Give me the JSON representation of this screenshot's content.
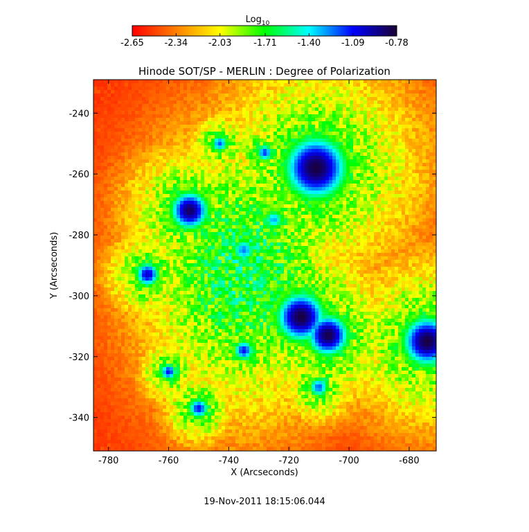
{
  "chart_data": {
    "type": "heatmap",
    "title": "Hinode SOT/SP - MERLIN : Degree of Polarization",
    "xlabel": "X (Arcseconds)",
    "ylabel": "Y (Arcseconds)",
    "xlim": [
      -785,
      -671
    ],
    "ylim": [
      -351,
      -229
    ],
    "x_ticks": [
      -780,
      -760,
      -740,
      -720,
      -700,
      -680
    ],
    "y_ticks": [
      -240,
      -260,
      -280,
      -300,
      -320,
      -340
    ],
    "colorbar": {
      "label_base": "Log",
      "label_sub": "10",
      "range": [
        -2.65,
        -0.78
      ],
      "ticks": [
        "-2.65",
        "-2.34",
        "-2.03",
        "-1.71",
        "-1.40",
        "-1.09",
        "-0.78"
      ],
      "colormap": [
        "#ff0000",
        "#ff8000",
        "#ffff00",
        "#00ff00",
        "#00ffff",
        "#0000ff",
        "#1a0033"
      ]
    },
    "features": [
      {
        "x": -711,
        "y": -258,
        "r": 9,
        "peak": -0.8
      },
      {
        "x": -753,
        "y": -272,
        "r": 5.5,
        "peak": -0.85
      },
      {
        "x": -716,
        "y": -307,
        "r": 7,
        "peak": -0.8
      },
      {
        "x": -707,
        "y": -313,
        "r": 6,
        "peak": -0.82
      },
      {
        "x": -674,
        "y": -315,
        "r": 7,
        "peak": -0.8
      },
      {
        "x": -767,
        "y": -293,
        "r": 3.5,
        "peak": -1.0
      },
      {
        "x": -750,
        "y": -337,
        "r": 3,
        "peak": -1.1
      },
      {
        "x": -760,
        "y": -325,
        "r": 2.5,
        "peak": -1.1
      },
      {
        "x": -735,
        "y": -318,
        "r": 3,
        "peak": -1.1
      },
      {
        "x": -743,
        "y": -250,
        "r": 2.5,
        "peak": -1.2
      },
      {
        "x": -728,
        "y": -253,
        "r": 2.5,
        "peak": -1.15
      },
      {
        "x": -735,
        "y": -285,
        "r": 3.5,
        "peak": -1.25
      },
      {
        "x": -725,
        "y": -275,
        "r": 3,
        "peak": -1.3
      },
      {
        "x": -710,
        "y": -330,
        "r": 3,
        "peak": -1.2
      }
    ],
    "background_level": -2.6
  },
  "footer": {
    "timestamp": "19-Nov-2011 18:15:06.044"
  }
}
